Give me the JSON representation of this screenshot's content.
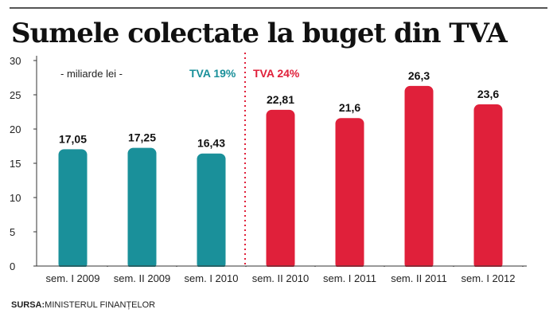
{
  "title": "Sumele colectate la buget din TVA",
  "source": {
    "label": "SURSA:",
    "text": "MINISTERUL FINANȚELOR"
  },
  "colors": {
    "teal": "#1a909a",
    "red": "#e0203a",
    "divider": "#e0203a"
  },
  "chart_data": {
    "type": "bar",
    "title": "Sumele colectate la buget din TVA",
    "unit_label": "- miliarde lei -",
    "categories": [
      "sem. I 2009",
      "sem. II 2009",
      "sem. I 2010",
      "sem. II 2010",
      "sem. I 2011",
      "sem. II 2011",
      "sem. I 2012"
    ],
    "values": [
      17.05,
      17.25,
      16.43,
      22.81,
      21.6,
      26.3,
      23.6
    ],
    "value_labels": [
      "17,05",
      "17,25",
      "16,43",
      "22,81",
      "21,6",
      "26,3",
      "23,6"
    ],
    "groups": [
      {
        "name": "TVA 19%",
        "color": "#1a909a",
        "indices": [
          0,
          1,
          2
        ]
      },
      {
        "name": "TVA 24%",
        "color": "#e0203a",
        "indices": [
          3,
          4,
          5,
          6
        ]
      }
    ],
    "ylim": [
      0,
      30
    ],
    "yticks": [
      0,
      5,
      10,
      15,
      20,
      25,
      30
    ],
    "grid": false
  }
}
